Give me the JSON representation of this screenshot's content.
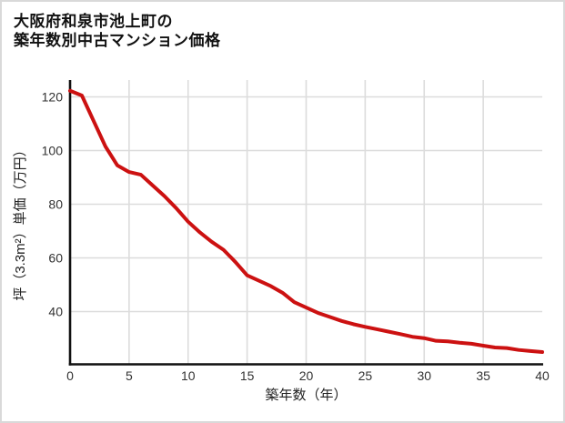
{
  "page": {
    "background": "#ffffff",
    "border_color": "#d9d9d9"
  },
  "chart_data": {
    "type": "line",
    "title_line1": "大阪府和泉市池上町の",
    "title_line2": "築年数別中古マンション価格",
    "xlabel": "築年数（年）",
    "ylabel": "坪（3.3m²）単価（万円）",
    "x_ticks": [
      0,
      5,
      10,
      15,
      20,
      25,
      30,
      35,
      40
    ],
    "y_ticks": [
      40,
      60,
      80,
      100,
      120
    ],
    "xlim": [
      0,
      40
    ],
    "ylim": [
      20,
      127
    ],
    "grid": true,
    "legend_position": "none",
    "line_color": "#cc1111",
    "grid_color": "#dcdcdc",
    "axis_color": "#111111",
    "x": [
      0,
      1,
      2,
      3,
      4,
      5,
      6,
      7,
      8,
      9,
      10,
      11,
      12,
      13,
      14,
      15,
      16,
      17,
      18,
      19,
      20,
      21,
      22,
      23,
      24,
      25,
      26,
      27,
      28,
      29,
      30,
      31,
      32,
      33,
      34,
      35,
      36,
      37,
      38,
      39,
      40
    ],
    "values": [
      122.3,
      120.5,
      111.0,
      101.5,
      94.5,
      92.0,
      91.0,
      87.0,
      83.0,
      78.5,
      73.5,
      69.5,
      66.0,
      63.0,
      58.5,
      53.5,
      51.5,
      49.5,
      47.0,
      43.5,
      41.5,
      39.5,
      38.0,
      36.5,
      35.3,
      34.3,
      33.4,
      32.5,
      31.6,
      30.6,
      30.1,
      29.1,
      28.9,
      28.4,
      28.0,
      27.3,
      26.6,
      26.4,
      25.7,
      25.3,
      24.9
    ]
  }
}
